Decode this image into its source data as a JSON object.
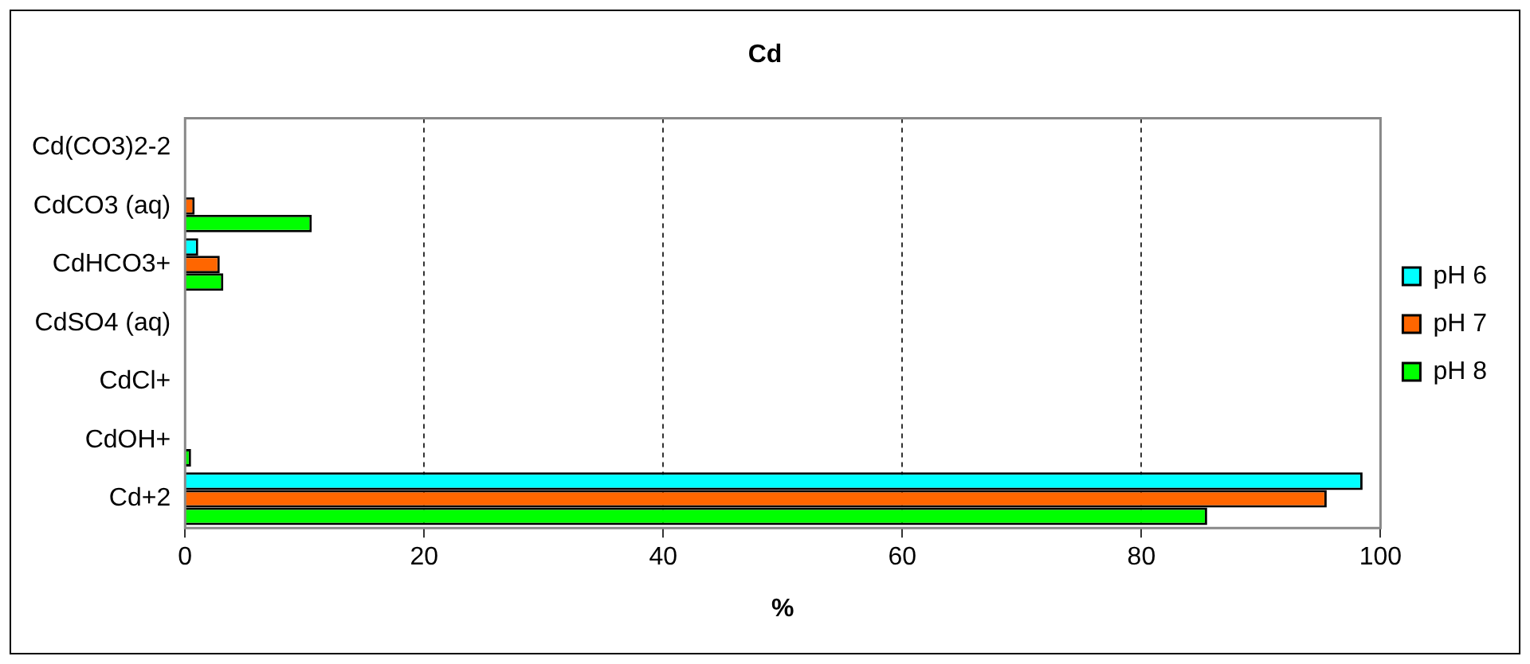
{
  "chart_data": {
    "type": "bar",
    "orientation": "horizontal",
    "title": "Cd",
    "xlabel": "%",
    "categories": [
      "Cd(CO3)2-2",
      "CdCO3 (aq)",
      "CdHCO3+",
      "CdSO4 (aq)",
      "CdCl+",
      "CdOH+",
      "Cd+2"
    ],
    "series": [
      {
        "name": "pH 6",
        "color": "#00ffff",
        "values": [
          0,
          0,
          1.1,
          0,
          0,
          0,
          98.5
        ]
      },
      {
        "name": "pH 7",
        "color": "#ff6600",
        "values": [
          0,
          0.8,
          2.9,
          0,
          0,
          0,
          95.5
        ]
      },
      {
        "name": "pH 8",
        "color": "#00ff00",
        "values": [
          0,
          10.6,
          3.2,
          0,
          0,
          0.5,
          85.5
        ]
      }
    ],
    "xlim": [
      0,
      100
    ],
    "xticks": [
      0,
      20,
      40,
      60,
      80,
      100
    ],
    "grid": "x",
    "legend": "right"
  }
}
